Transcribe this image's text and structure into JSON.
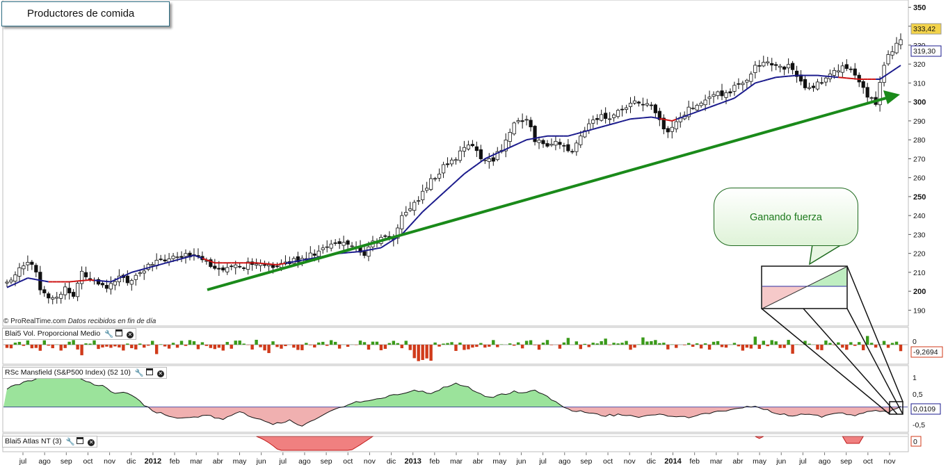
{
  "title": "Productores de comida",
  "source_text": "© ProRealTime.com",
  "source_note": "Datos recibidos en fin de día",
  "callout": "Ganando fuerza",
  "colors": {
    "up": "#ffffff",
    "down": "#111111",
    "ma_blue": "#1a1a8c",
    "ma_red": "#cc1111",
    "trend": "#1a8a1a",
    "vol_up": "#3a9a1a",
    "vol_down": "#d03a1a",
    "rsc_pos": "#9be39b",
    "rsc_neg": "#f0b0b0"
  },
  "chart_data": [
    {
      "type": "candlestick",
      "title": "Productores de comida",
      "yticks": [
        190,
        200,
        210,
        220,
        230,
        240,
        250,
        260,
        270,
        280,
        290,
        300,
        310,
        320,
        330,
        340,
        350
      ],
      "ylim": [
        185,
        352
      ],
      "price_label": "333,42",
      "ma_label": "319,30",
      "price_value": 333.42,
      "ma_value": 319.3,
      "xticks": [
        "jul",
        "ago",
        "sep",
        "oct",
        "nov",
        "dic",
        "2012",
        "feb",
        "mar",
        "abr",
        "may",
        "jun",
        "jul",
        "ago",
        "sep",
        "oct",
        "nov",
        "dic",
        "2013",
        "feb",
        "mar",
        "abr",
        "may",
        "jun",
        "jul",
        "ago",
        "sep",
        "oct",
        "nov",
        "dic",
        "2014",
        "feb",
        "mar",
        "abr",
        "may",
        "jun",
        "jul",
        "ago",
        "sep",
        "oct",
        "nov"
      ],
      "anchors_close": [
        [
          0,
          204
        ],
        [
          3,
          213
        ],
        [
          5,
          216
        ],
        [
          7,
          210
        ],
        [
          8,
          202
        ],
        [
          10,
          198
        ],
        [
          12,
          196
        ],
        [
          14,
          202
        ],
        [
          16,
          198
        ],
        [
          18,
          210
        ],
        [
          21,
          206
        ],
        [
          24,
          200
        ],
        [
          27,
          208
        ],
        [
          29,
          205
        ],
        [
          33,
          212
        ],
        [
          37,
          216
        ],
        [
          42,
          218
        ],
        [
          46,
          220
        ],
        [
          48,
          216
        ],
        [
          50,
          213
        ],
        [
          52,
          210
        ],
        [
          54,
          212
        ],
        [
          58,
          214
        ],
        [
          62,
          213
        ],
        [
          66,
          214
        ],
        [
          70,
          217
        ],
        [
          74,
          220
        ],
        [
          78,
          224
        ],
        [
          82,
          226
        ],
        [
          84,
          222
        ],
        [
          86,
          220
        ],
        [
          88,
          225
        ],
        [
          91,
          229
        ],
        [
          93,
          228
        ],
        [
          95,
          240
        ],
        [
          98,
          246
        ],
        [
          102,
          258
        ],
        [
          105,
          266
        ],
        [
          108,
          271
        ],
        [
          112,
          278
        ],
        [
          114,
          270
        ],
        [
          117,
          270
        ],
        [
          119,
          276
        ],
        [
          122,
          288
        ],
        [
          125,
          292
        ],
        [
          127,
          280
        ],
        [
          130,
          278
        ],
        [
          133,
          278
        ],
        [
          136,
          273
        ],
        [
          139,
          286
        ],
        [
          142,
          292
        ],
        [
          145,
          292
        ],
        [
          148,
          296
        ],
        [
          151,
          299
        ],
        [
          154,
          300
        ],
        [
          157,
          290
        ],
        [
          159,
          284
        ],
        [
          162,
          292
        ],
        [
          165,
          298
        ],
        [
          168,
          302
        ],
        [
          171,
          304
        ],
        [
          174,
          306
        ],
        [
          177,
          310
        ],
        [
          180,
          318
        ],
        [
          183,
          320
        ],
        [
          186,
          319
        ],
        [
          189,
          318
        ],
        [
          192,
          306
        ],
        [
          195,
          310
        ],
        [
          198,
          315
        ],
        [
          201,
          318
        ],
        [
          203,
          316
        ],
        [
          205,
          310
        ],
        [
          207,
          303
        ],
        [
          209,
          300
        ],
        [
          211,
          320
        ],
        [
          213,
          328
        ],
        [
          215,
          333.42
        ]
      ],
      "anchors_ma": [
        [
          0,
          202
        ],
        [
          5,
          207
        ],
        [
          10,
          205
        ],
        [
          15,
          205
        ],
        [
          20,
          206
        ],
        [
          25,
          205
        ],
        [
          30,
          210
        ],
        [
          35,
          213
        ],
        [
          40,
          216
        ],
        [
          45,
          219
        ],
        [
          50,
          215
        ],
        [
          55,
          215
        ],
        [
          60,
          215
        ],
        [
          65,
          214
        ],
        [
          70,
          216
        ],
        [
          75,
          218
        ],
        [
          80,
          220
        ],
        [
          85,
          221
        ],
        [
          90,
          223
        ],
        [
          95,
          230
        ],
        [
          100,
          242
        ],
        [
          105,
          252
        ],
        [
          110,
          262
        ],
        [
          115,
          270
        ],
        [
          120,
          275
        ],
        [
          125,
          280
        ],
        [
          130,
          282
        ],
        [
          135,
          282
        ],
        [
          140,
          285
        ],
        [
          145,
          288
        ],
        [
          150,
          291
        ],
        [
          155,
          292
        ],
        [
          160,
          290
        ],
        [
          165,
          294
        ],
        [
          170,
          298
        ],
        [
          175,
          302
        ],
        [
          180,
          310
        ],
        [
          185,
          313
        ],
        [
          190,
          314
        ],
        [
          195,
          314
        ],
        [
          200,
          313
        ],
        [
          205,
          312
        ],
        [
          210,
          312
        ],
        [
          215,
          319.3
        ]
      ]
    },
    {
      "type": "bar",
      "title": "Blai5 Vol. Proporcional Medio",
      "yticks_label": "0",
      "value_label": "-9,2694",
      "value": -9.2694
    },
    {
      "type": "area",
      "title": "RSc Mansfield (S&P500 Index) (52 10)",
      "yticks": [
        "1",
        "0,5",
        "-0,5"
      ],
      "ytick_values": [
        1,
        0.5,
        -0.5
      ],
      "ylim": [
        -0.72,
        1.2
      ],
      "value_label": "0,0109",
      "value": 0.0109,
      "anchors": [
        [
          0,
          0.55
        ],
        [
          6,
          0.8
        ],
        [
          12,
          1.12
        ],
        [
          16,
          0.95
        ],
        [
          20,
          0.7
        ],
        [
          24,
          0.58
        ],
        [
          26,
          0.38
        ],
        [
          28,
          0.45
        ],
        [
          31,
          0.25
        ],
        [
          33,
          0.05
        ],
        [
          36,
          -0.15
        ],
        [
          40,
          -0.3
        ],
        [
          44,
          -0.32
        ],
        [
          48,
          -0.25
        ],
        [
          52,
          -0.35
        ],
        [
          56,
          -0.15
        ],
        [
          60,
          -0.35
        ],
        [
          64,
          -0.5
        ],
        [
          68,
          -0.4
        ],
        [
          71,
          -0.58
        ],
        [
          74,
          -0.35
        ],
        [
          77,
          -0.18
        ],
        [
          80,
          -0.02
        ],
        [
          84,
          0.15
        ],
        [
          88,
          0.22
        ],
        [
          92,
          0.32
        ],
        [
          96,
          0.42
        ],
        [
          98,
          0.48
        ],
        [
          102,
          0.42
        ],
        [
          106,
          0.62
        ],
        [
          108,
          0.72
        ],
        [
          112,
          0.52
        ],
        [
          116,
          0.28
        ],
        [
          118,
          0.34
        ],
        [
          122,
          0.45
        ],
        [
          124,
          0.4
        ],
        [
          127,
          0.5
        ],
        [
          130,
          0.3
        ],
        [
          133,
          0.05
        ],
        [
          136,
          -0.1
        ],
        [
          140,
          -0.15
        ],
        [
          144,
          -0.25
        ],
        [
          148,
          -0.22
        ],
        [
          152,
          -0.28
        ],
        [
          156,
          -0.2
        ],
        [
          160,
          -0.27
        ],
        [
          164,
          -0.3
        ],
        [
          168,
          -0.2
        ],
        [
          172,
          -0.12
        ],
        [
          176,
          -0.05
        ],
        [
          180,
          0.04
        ],
        [
          184,
          -0.15
        ],
        [
          188,
          -0.25
        ],
        [
          192,
          -0.2
        ],
        [
          196,
          -0.28
        ],
        [
          200,
          -0.18
        ],
        [
          204,
          -0.25
        ],
        [
          208,
          -0.1
        ],
        [
          212,
          -0.15
        ],
        [
          215,
          0.0109
        ]
      ]
    },
    {
      "type": "area",
      "title": "Blai5 Atlas NT (3)",
      "yticks_label": "0",
      "ylim": [
        -0.6,
        0.2
      ]
    }
  ]
}
